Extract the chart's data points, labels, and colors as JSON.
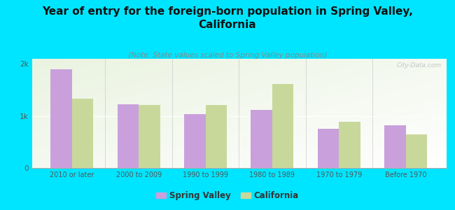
{
  "title": "Year of entry for the foreign-born population in Spring Valley,\nCalifornia",
  "subtitle": "(Note: State values scaled to Spring Valley population)",
  "categories": [
    "2010 or later",
    "2000 to 2009",
    "1990 to 1999",
    "1980 to 1989",
    "1970 to 1979",
    "Before 1970"
  ],
  "spring_valley": [
    1900,
    1220,
    1040,
    1120,
    760,
    820
  ],
  "california": [
    1330,
    1210,
    1210,
    1620,
    890,
    650
  ],
  "sv_color": "#c9a0dc",
  "ca_color": "#c8d89a",
  "background_color": "#00e5ff",
  "plot_bg_color": "#eaf3e0",
  "ylim": [
    0,
    2100
  ],
  "ytick_labels": [
    "0",
    "1k",
    "2k"
  ],
  "title_fontsize": 11,
  "subtitle_fontsize": 7.5,
  "legend_labels": [
    "Spring Valley",
    "California"
  ],
  "watermark": "City-Data.com"
}
